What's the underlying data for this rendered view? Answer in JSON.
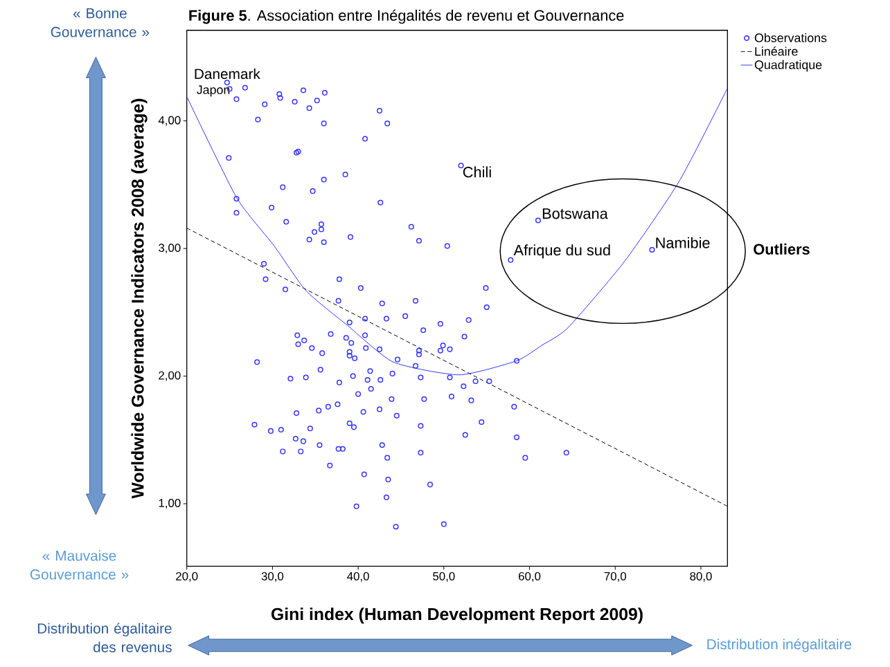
{
  "chart_data": {
    "type": "scatter",
    "title": "**Figure 5**. Association entre Inégalités de revenu et Gouvernance",
    "xlabel": "Gini index (Human Development Report 2009)",
    "ylabel": "Worldwide Governance Indicators 2008 (average)",
    "xlim": [
      20,
      83.1
    ],
    "ylim": [
      0.51,
      4.71
    ],
    "xticks": [
      {
        "value": 20,
        "label": "20,0"
      },
      {
        "value": 30,
        "label": "30,0"
      },
      {
        "value": 40,
        "label": "40,0"
      },
      {
        "value": 50,
        "label": "50,0"
      },
      {
        "value": 60,
        "label": "60,0"
      },
      {
        "value": 70,
        "label": "70,0"
      },
      {
        "value": 80,
        "label": "80,0"
      }
    ],
    "yticks": [
      {
        "value": 1,
        "label": "1,00"
      },
      {
        "value": 2,
        "label": "2,00"
      },
      {
        "value": 3,
        "label": "3,00"
      },
      {
        "value": 4,
        "label": "4,00"
      }
    ],
    "legend": "top right",
    "marker": "circle",
    "series": [
      {
        "name": "Observations",
        "color": "#3333ff",
        "x": [
          24.7,
          25.0,
          26.8,
          25.8,
          29.1,
          28.3,
          30.8,
          30.9,
          32.6,
          33.6,
          34.3,
          35.2,
          36.1,
          36.0,
          42.5,
          43.4,
          40.8,
          32.8,
          33.0,
          24.9,
          38.5,
          36.0,
          31.2,
          34.7,
          42.6,
          25.8,
          25.8,
          29.9,
          31.6,
          35.7,
          35.7,
          34.9,
          39.1,
          34.3,
          36.0,
          46.2,
          47.1,
          50.4,
          52.0,
          61.0,
          57.8,
          74.3,
          29.0,
          29.2,
          31.5,
          37.8,
          40.3,
          37.7,
          42.8,
          46.7,
          45.5,
          43.3,
          40.8,
          39.0,
          54.9,
          55.0,
          49.6,
          52.9,
          47.6,
          36.8,
          32.9,
          33.7,
          33.0,
          34.6,
          35.8,
          38.6,
          39.2,
          40.8,
          40.9,
          39.0,
          39.0,
          39.6,
          42.5,
          44.6,
          47.1,
          47.1,
          49.9,
          49.6,
          50.7,
          52.4,
          46.7,
          58.5,
          28.2,
          32.1,
          33.9,
          35.6,
          37.8,
          39.4,
          41.4,
          41.1,
          42.6,
          44.0,
          47.3,
          50.7,
          52.3,
          53.7,
          55.3,
          40.0,
          41.5,
          43.9,
          47.7,
          50.9,
          53.2,
          58.2,
          37.6,
          36.5,
          35.4,
          40.6,
          42.5,
          32.8,
          44.5,
          27.9,
          29.8,
          31.0,
          34.4,
          39.0,
          39.5,
          47.3,
          54.4,
          52.5,
          58.5,
          32.7,
          33.6,
          35.5,
          37.7,
          38.2,
          42.8,
          31.2,
          33.3,
          47.3,
          43.4,
          64.3,
          59.5,
          36.7,
          40.7,
          43.5,
          48.4,
          43.3,
          39.8,
          44.4,
          50.0
        ],
        "values": [
          4.3,
          4.25,
          4.26,
          4.17,
          4.13,
          4.01,
          4.21,
          4.18,
          4.15,
          4.24,
          4.1,
          4.16,
          4.22,
          3.98,
          4.08,
          3.98,
          3.86,
          3.75,
          3.76,
          3.71,
          3.58,
          3.54,
          3.48,
          3.45,
          3.36,
          3.39,
          3.28,
          3.32,
          3.21,
          3.19,
          3.15,
          3.13,
          3.09,
          3.07,
          3.05,
          3.17,
          3.06,
          3.02,
          3.65,
          3.22,
          2.91,
          2.99,
          2.88,
          2.76,
          2.68,
          2.76,
          2.69,
          2.59,
          2.57,
          2.59,
          2.47,
          2.45,
          2.45,
          2.42,
          2.69,
          2.54,
          2.41,
          2.44,
          2.36,
          2.33,
          2.32,
          2.28,
          2.25,
          2.22,
          2.18,
          2.3,
          2.26,
          2.32,
          2.22,
          2.19,
          2.16,
          2.14,
          2.21,
          2.13,
          2.2,
          2.17,
          2.24,
          2.2,
          2.21,
          2.31,
          2.08,
          2.12,
          2.11,
          1.98,
          1.99,
          2.05,
          1.95,
          2.0,
          2.04,
          1.97,
          1.97,
          2.02,
          1.99,
          1.99,
          1.92,
          1.96,
          1.96,
          1.86,
          1.9,
          1.82,
          1.82,
          1.84,
          1.81,
          1.76,
          1.78,
          1.76,
          1.73,
          1.72,
          1.74,
          1.71,
          1.69,
          1.62,
          1.57,
          1.58,
          1.59,
          1.63,
          1.6,
          1.61,
          1.64,
          1.54,
          1.52,
          1.51,
          1.49,
          1.46,
          1.43,
          1.43,
          1.46,
          1.41,
          1.41,
          1.4,
          1.36,
          1.4,
          1.36,
          1.3,
          1.23,
          1.19,
          1.15,
          1.05,
          0.98,
          0.82,
          0.84
        ]
      },
      {
        "name": "Linéaire",
        "type": "line",
        "color": "#000000",
        "line_style": "dashed",
        "marker": "none",
        "x": [
          20,
          83.1
        ],
        "values": [
          3.16,
          0.98
        ]
      },
      {
        "name": "Quadratique",
        "type": "line",
        "color": "#3333ff",
        "line_style": "solid",
        "marker": "none",
        "x": [
          20,
          25.8,
          30.2,
          33.9,
          38.7,
          44.1,
          51.8,
          58.5,
          61.4,
          64.5,
          71.1,
          77.5,
          83.05
        ],
        "values": [
          4.19,
          3.4,
          3.02,
          2.67,
          2.4,
          2.11,
          2.01,
          2.12,
          2.24,
          2.38,
          2.9,
          3.53,
          4.25
        ]
      }
    ],
    "annotations": [
      {
        "text": "Danemark",
        "x": 24.7,
        "y": 4.3
      },
      {
        "text": "Japon",
        "x": 25.0,
        "y": 4.25
      },
      {
        "text": "Chili",
        "x": 52.0,
        "y": 3.65
      },
      {
        "text": "Botswana",
        "x": 61.0,
        "y": 3.22
      },
      {
        "text": "Afrique du sud",
        "x": 57.8,
        "y": 2.91
      },
      {
        "text": "Namibie",
        "x": 74.3,
        "y": 2.99
      },
      "Outliers",
      "« Bonne Gouvernance »",
      "« Mauvaise Gouvernance »",
      "Distribution égalitaire des revenus",
      "Distribution inégalitaire"
    ]
  }
}
